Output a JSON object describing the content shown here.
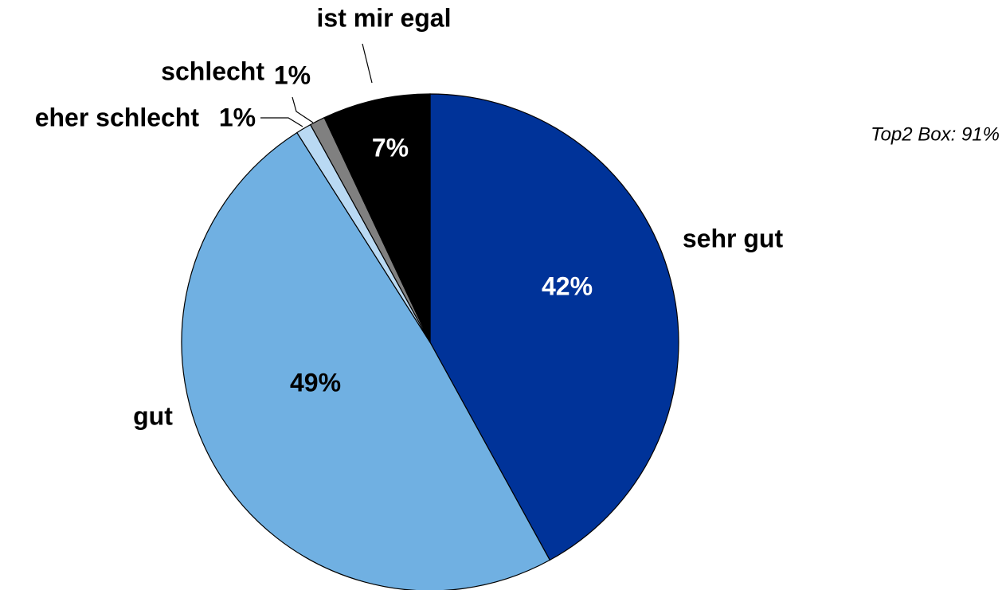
{
  "chart_data": {
    "type": "pie",
    "categories": [
      "sehr gut",
      "gut",
      "eher schlecht",
      "schlecht",
      "ist mir egal"
    ],
    "values": [
      42,
      49,
      1,
      1,
      7
    ],
    "value_labels": [
      "42%",
      "49%",
      "1%",
      "1%",
      "7%"
    ],
    "colors": [
      "#003399",
      "#70b0e2",
      "#b9d9f3",
      "#808080",
      "#000000"
    ],
    "annotation": "Top2 Box: 91%"
  }
}
